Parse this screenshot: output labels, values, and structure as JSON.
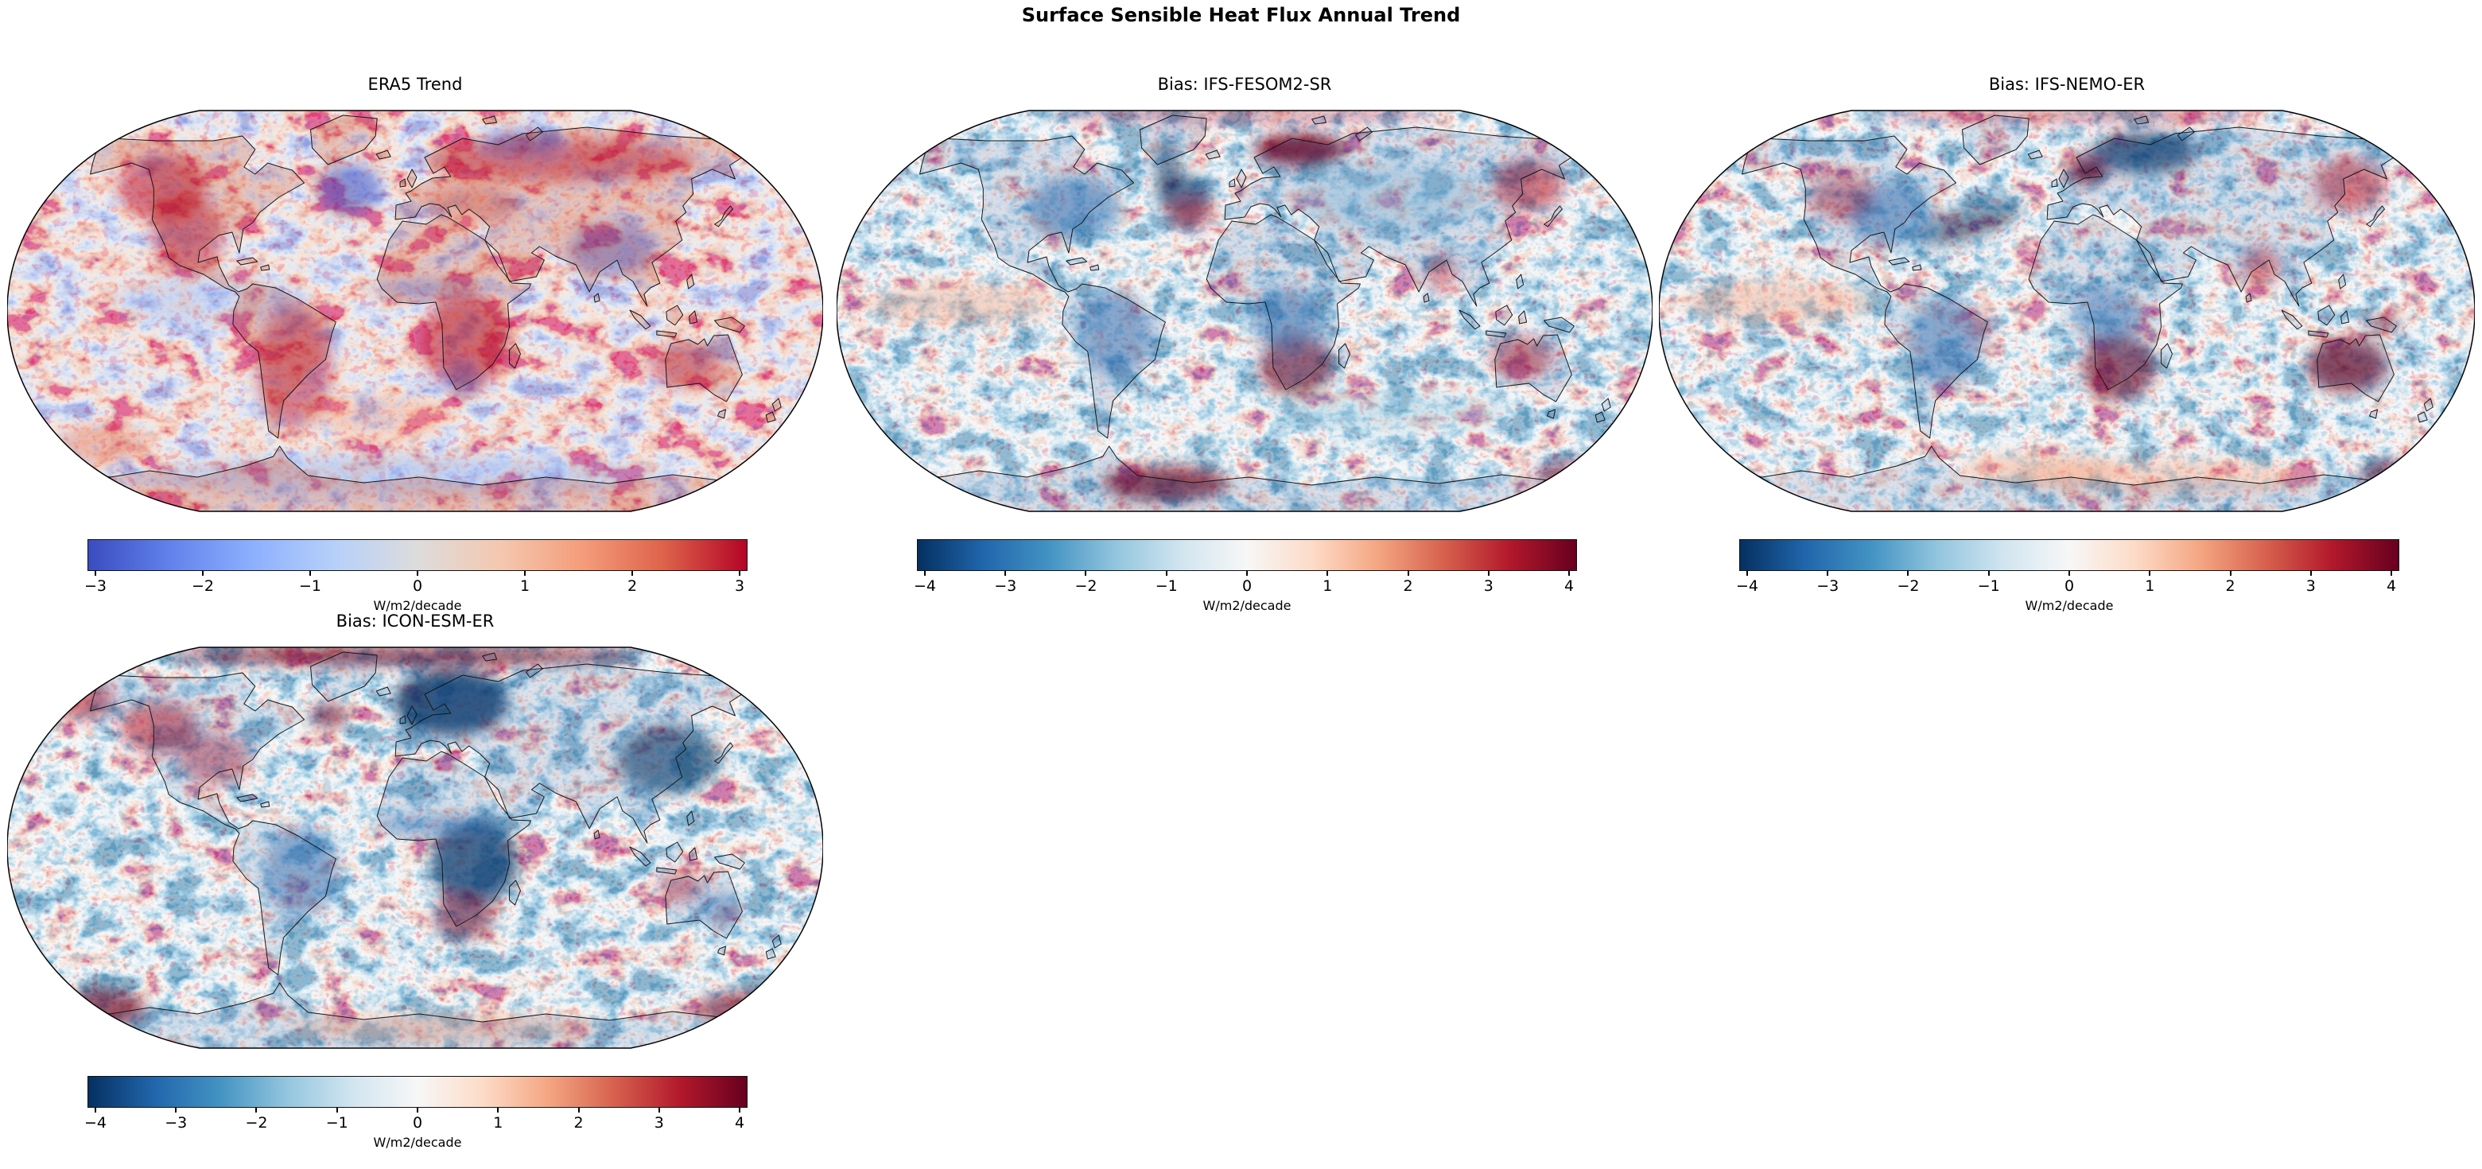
{
  "figure": {
    "title": "Surface Sensible Heat Flux Annual Trend"
  },
  "panels": [
    {
      "id": "era5-trend",
      "title": "ERA5 Trend",
      "colorbar": {
        "colormap": "coolwarm",
        "ticks": [
          "−3",
          "−2",
          "−1",
          "0",
          "1",
          "2",
          "3"
        ],
        "label": "W/m2/decade"
      }
    },
    {
      "id": "bias-ifs-fesom2-sr",
      "title": "Bias: IFS-FESOM2-SR",
      "colorbar": {
        "colormap": "RdBu_r",
        "ticks": [
          "−4",
          "−3",
          "−2",
          "−1",
          "0",
          "1",
          "2",
          "3",
          "4"
        ],
        "label": "W/m2/decade"
      }
    },
    {
      "id": "bias-ifs-nemo-er",
      "title": "Bias: IFS-NEMO-ER",
      "colorbar": {
        "colormap": "RdBu_r",
        "ticks": [
          "−4",
          "−3",
          "−2",
          "−1",
          "0",
          "1",
          "2",
          "3",
          "4"
        ],
        "label": "W/m2/decade"
      }
    },
    {
      "id": "bias-icon-esm-er",
      "title": "Bias: ICON-ESM-ER",
      "colorbar": {
        "colormap": "RdBu_r",
        "ticks": [
          "−4",
          "−3",
          "−2",
          "−1",
          "0",
          "1",
          "2",
          "3",
          "4"
        ],
        "label": "W/m2/decade"
      }
    }
  ],
  "colormaps": {
    "coolwarm": [
      "#3a4cc0",
      "#6282eb",
      "#8db0fe",
      "#b7d0fa",
      "#dddcdc",
      "#f4c8b0",
      "#f49d7b",
      "#dd624a",
      "#b40426"
    ],
    "RdBu_r": [
      "#053061",
      "#2166ac",
      "#4393c3",
      "#92c5de",
      "#d1e5f0",
      "#f7f7f7",
      "#fddbc7",
      "#f4a582",
      "#d6604d",
      "#b2182b",
      "#67001f"
    ]
  },
  "chart_data": {
    "type": "heatmap",
    "subtype": "global_map_grid",
    "projection": "Robinson",
    "suptitle": "Surface Sensible Heat Flux Annual Trend",
    "units": "W/m2/decade",
    "grid": {
      "rows": 2,
      "cols": 3,
      "occupied_cells": [
        [
          0,
          0
        ],
        [
          0,
          1
        ],
        [
          0,
          2
        ],
        [
          1,
          0
        ]
      ]
    },
    "panels": [
      {
        "title": "ERA5 Trend",
        "role": "reference-trend",
        "colormap": "coolwarm",
        "colorbar_range": [
          -3,
          3
        ],
        "colorbar_ticks": [
          -3,
          -2,
          -1,
          0,
          1,
          2,
          3
        ],
        "units": "W/m2/decade",
        "visual_summary": "Positive (red) trends over most land: western North America, South America, Africa, Siberia, Europe, Australia; negative (blue) over North Atlantic, Barents/Kara seas, India/Tibet, Sahel band and Southern Ocean; oceans mostly pale."
      },
      {
        "title": "Bias: IFS-FESOM2-SR",
        "role": "model-bias",
        "colormap": "RdBu_r",
        "colorbar_range": [
          -4,
          4
        ],
        "colorbar_ticks": [
          -4,
          -3,
          -2,
          -1,
          0,
          1,
          2,
          3,
          4
        ],
        "units": "W/m2/decade",
        "visual_summary": "Pale blue oceans; dark red blob over Kara Sea; dark blue Labrador/Greenland seas; negative bias over eastern North America, Amazon, central Africa; strong positive over southern Africa, Australia, Kamchatka and Antarctic coast southwest of Africa."
      },
      {
        "title": "Bias: IFS-NEMO-ER",
        "role": "model-bias",
        "colormap": "RdBu_r",
        "colorbar_range": [
          -4,
          4
        ],
        "colorbar_ticks": [
          -4,
          -3,
          -2,
          -1,
          0,
          1,
          2,
          3,
          4
        ],
        "units": "W/m2/decade",
        "visual_summary": "Similar to IFS-FESOM2-SR: dark blue Barents/Kara and North Atlantic storm-track band, blue central Africa and Amazon, strong positive bias over southern Africa and nearly all of Australia, India and Kamchatka; orange subtropical ocean bands."
      },
      {
        "title": "Bias: ICON-ESM-ER",
        "role": "model-bias",
        "colormap": "RdBu_r",
        "colorbar_range": [
          -4,
          4
        ],
        "colorbar_ticks": [
          -4,
          -3,
          -2,
          -1,
          0,
          1,
          2,
          3,
          4
        ],
        "units": "W/m2/decade",
        "visual_summary": "Dark red band along the Arctic top edge and map corners; large dark blue Nordic/Barents seas, central Africa and East Asia; red patches over northwest North America and southern Africa; pale orange Antarctic interior."
      }
    ]
  }
}
